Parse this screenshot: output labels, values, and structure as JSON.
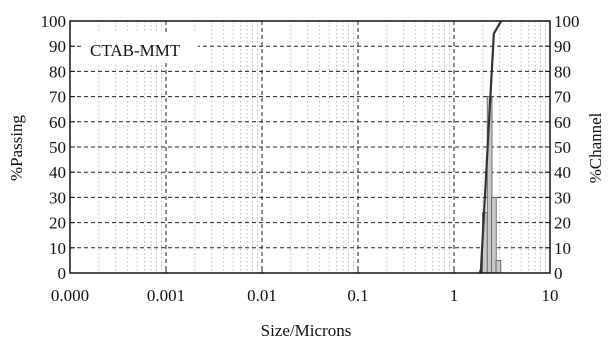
{
  "chart_data": {
    "type": "bar",
    "annotation": "CTAB-MMT",
    "xlabel": "Size/Microns",
    "ylabel_left": "%Passing",
    "ylabel_right": "%Channel",
    "x_scale": "log",
    "x_tick_labels": [
      "0.000",
      "0.001",
      "0.01",
      "0.1",
      "1",
      "10"
    ],
    "y_ticks": [
      0,
      10,
      20,
      30,
      40,
      50,
      60,
      70,
      80,
      90,
      100
    ],
    "ylim": [
      0,
      100
    ],
    "grid": true,
    "bars": [
      {
        "x": 1.95,
        "channel": 1
      },
      {
        "x": 2.1,
        "channel": 24
      },
      {
        "x": 2.35,
        "channel": 70
      },
      {
        "x": 2.6,
        "channel": 30
      },
      {
        "x": 2.9,
        "channel": 5
      }
    ],
    "passing_curve": [
      {
        "x": 1.9,
        "passing": 0
      },
      {
        "x": 2.6,
        "passing": 95
      },
      {
        "x": 3.1,
        "passing": 100
      }
    ],
    "colors": {
      "bar_fill": "#c8c8c8",
      "bar_stroke": "#555555",
      "curve": "#333333",
      "grid": "#222222"
    }
  }
}
